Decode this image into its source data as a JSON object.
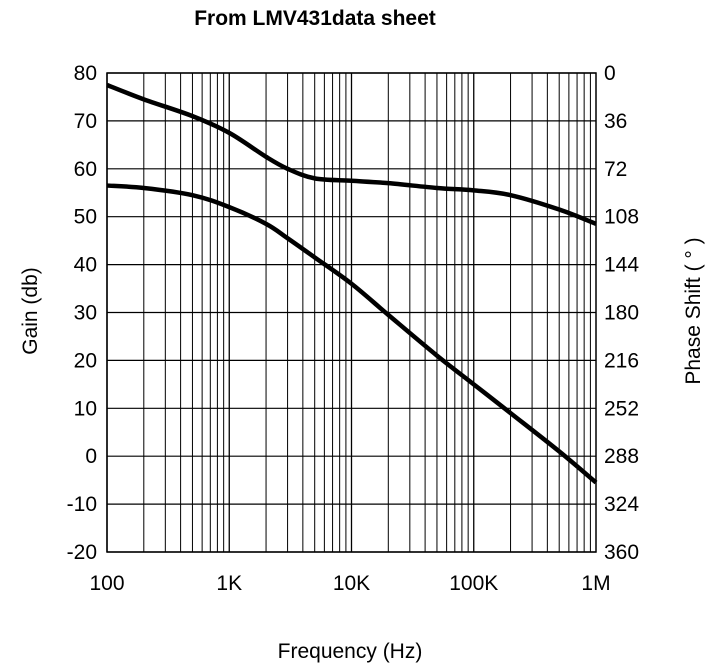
{
  "chart_data": {
    "type": "line",
    "title": "From LMV431data sheet",
    "xlabel": "Frequency (Hz)",
    "ylabel": "Gain (db)",
    "y2label": "Phase Shift ( ° )",
    "xscale": "log",
    "xlim": [
      100,
      1000000
    ],
    "ylim": [
      -20,
      80
    ],
    "y2lim": [
      0,
      360
    ],
    "y2_inverted": true,
    "grid": true,
    "x_ticks": [
      {
        "value": 100,
        "label": "100"
      },
      {
        "value": 1000,
        "label": "1K"
      },
      {
        "value": 10000,
        "label": "10K"
      },
      {
        "value": 100000,
        "label": "100K"
      },
      {
        "value": 1000000,
        "label": "1M"
      }
    ],
    "y_ticks": [
      {
        "value": 80,
        "label": "80"
      },
      {
        "value": 70,
        "label": "70"
      },
      {
        "value": 60,
        "label": "60"
      },
      {
        "value": 50,
        "label": "50"
      },
      {
        "value": 40,
        "label": "40"
      },
      {
        "value": 30,
        "label": "30"
      },
      {
        "value": 20,
        "label": "20"
      },
      {
        "value": 10,
        "label": "10"
      },
      {
        "value": 0,
        "label": "0"
      },
      {
        "value": -10,
        "label": "-10"
      },
      {
        "value": -20,
        "label": "-20"
      }
    ],
    "y2_ticks": [
      {
        "value": 0,
        "label": "0"
      },
      {
        "value": 36,
        "label": "36"
      },
      {
        "value": 72,
        "label": "72"
      },
      {
        "value": 108,
        "label": "108"
      },
      {
        "value": 144,
        "label": "144"
      },
      {
        "value": 180,
        "label": "180"
      },
      {
        "value": 216,
        "label": "216"
      },
      {
        "value": 252,
        "label": "252"
      },
      {
        "value": 288,
        "label": "288"
      },
      {
        "value": 324,
        "label": "324"
      },
      {
        "value": 360,
        "label": "360"
      }
    ],
    "series": [
      {
        "axis": "left",
        "x": [
          100,
          200,
          500,
          1000,
          2000,
          3000,
          5000,
          10000,
          20000,
          50000,
          100000,
          200000,
          500000,
          1000000
        ],
        "y": [
          77.5,
          74.5,
          71,
          67.5,
          62.5,
          60,
          58,
          57.5,
          57,
          56,
          55.5,
          54.5,
          51.5,
          48.5
        ]
      },
      {
        "axis": "left",
        "x": [
          100,
          200,
          500,
          1000,
          2000,
          3000,
          5000,
          10000,
          20000,
          50000,
          100000,
          200000,
          500000,
          1000000
        ],
        "y": [
          56.5,
          56,
          54.5,
          52,
          48.5,
          45.5,
          41.5,
          36,
          29.5,
          21,
          15,
          9,
          1,
          -5.5
        ]
      }
    ],
    "colors": {
      "line": "#000000",
      "grid": "#000000",
      "background": "#ffffff"
    }
  }
}
